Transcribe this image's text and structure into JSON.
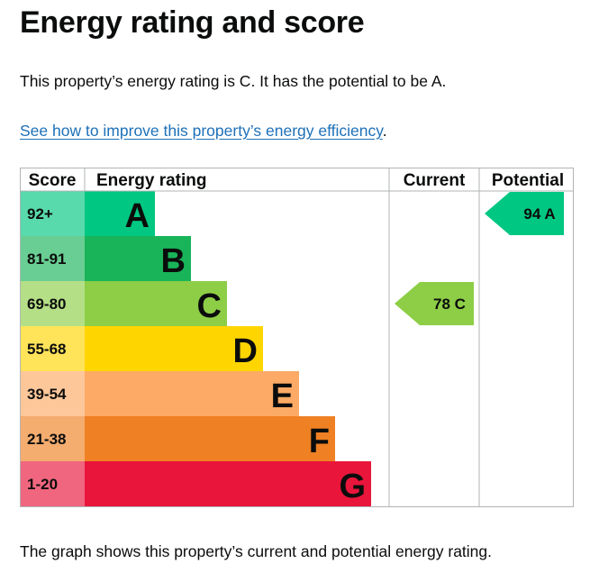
{
  "page": {
    "title": "Energy rating and score",
    "rating_summary": "This property’s energy rating is C. It has the potential to be A.",
    "improve_link": "See how to improve this property’s energy efficiency",
    "improve_link_suffix": ".",
    "footer_text": "The graph shows this property’s current and potential energy rating."
  },
  "colors": {
    "A": "#00c781",
    "B": "#19b459",
    "C": "#8dce46",
    "D": "#ffd500",
    "E": "#fcaa65",
    "F": "#ef8023",
    "G": "#e9153b"
  },
  "chart_data": {
    "type": "bar",
    "headers": {
      "score": "Score",
      "rating": "Energy rating",
      "current": "Current",
      "potential": "Potential"
    },
    "bands": [
      {
        "letter": "A",
        "range": "92+"
      },
      {
        "letter": "B",
        "range": "81-91"
      },
      {
        "letter": "C",
        "range": "69-80"
      },
      {
        "letter": "D",
        "range": "55-68"
      },
      {
        "letter": "E",
        "range": "39-54"
      },
      {
        "letter": "F",
        "range": "21-38"
      },
      {
        "letter": "G",
        "range": "1-20"
      }
    ],
    "current": {
      "score": 78,
      "band": "C",
      "label": "78 C"
    },
    "potential": {
      "score": 94,
      "band": "A",
      "label": "94 A"
    }
  }
}
